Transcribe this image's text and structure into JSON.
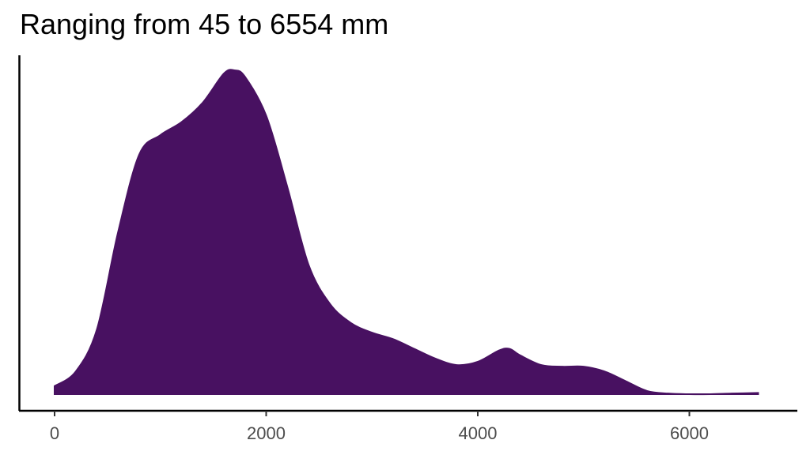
{
  "chart_data": {
    "type": "area",
    "subtype": "density",
    "title": "Ranging from 45 to 6554 mm",
    "xlabel": "",
    "ylabel": "",
    "xlim": [
      0,
      6650
    ],
    "x_ticks": [
      0,
      2000,
      4000,
      6000
    ],
    "x_tick_labels": [
      "0",
      "2000",
      "4000",
      "6000"
    ],
    "y_ticks_shown": false,
    "grid": false,
    "legend": "none",
    "fill_color": "#481161",
    "x": [
      0,
      200,
      400,
      600,
      800,
      1000,
      1200,
      1400,
      1600,
      1700,
      1800,
      2000,
      2200,
      2400,
      2600,
      2800,
      3000,
      3200,
      3400,
      3600,
      3800,
      4000,
      4200,
      4300,
      4400,
      4600,
      4800,
      5000,
      5200,
      5400,
      5600,
      5800,
      6000,
      6200,
      6400,
      6650
    ],
    "density_relative": [
      0.025,
      0.07,
      0.2,
      0.5,
      0.74,
      0.8,
      0.84,
      0.9,
      0.99,
      1.0,
      0.98,
      0.86,
      0.64,
      0.4,
      0.28,
      0.22,
      0.19,
      0.17,
      0.14,
      0.11,
      0.09,
      0.1,
      0.135,
      0.14,
      0.12,
      0.09,
      0.085,
      0.085,
      0.07,
      0.04,
      0.01,
      0.002,
      0.0,
      0.0,
      0.002,
      0.004
    ]
  }
}
